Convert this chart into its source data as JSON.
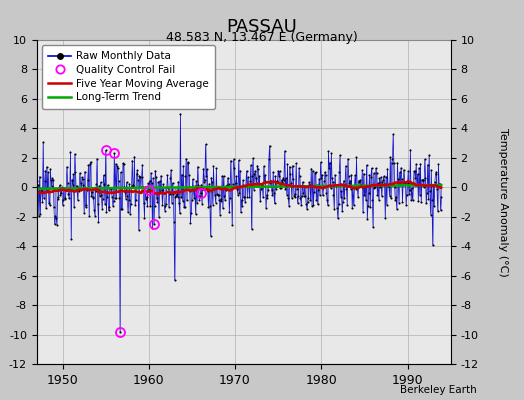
{
  "title": "PASSAU",
  "subtitle": "48.583 N, 13.467 E (Germany)",
  "ylabel": "Temperature Anomaly (°C)",
  "credit": "Berkeley Earth",
  "xlim": [
    1947.0,
    1995.0
  ],
  "ylim": [
    -12,
    10
  ],
  "yticks": [
    -12,
    -10,
    -8,
    -6,
    -4,
    -2,
    0,
    2,
    4,
    6,
    8,
    10
  ],
  "xticks": [
    1950,
    1960,
    1970,
    1980,
    1990
  ],
  "fig_bg": "#c8c8c8",
  "plot_bg": "#e8e8e8",
  "grid_color": "#b0b0b0",
  "line_color": "#0000cc",
  "fill_color": "#6666cc",
  "ma_color": "#cc0000",
  "trend_color": "#00aa00",
  "qc_color": "#ff00ff",
  "seed": 12,
  "n_years": 47,
  "start_year": 1947
}
